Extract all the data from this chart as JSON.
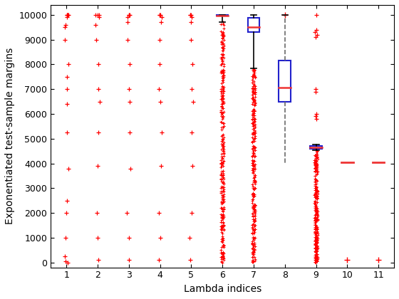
{
  "title": "",
  "xlabel": "Lambda indices",
  "ylabel": "Exponentiated test-sample margins",
  "xlim": [
    0.5,
    11.5
  ],
  "ylim": [
    -200,
    10400
  ],
  "xticks": [
    1,
    2,
    3,
    4,
    5,
    6,
    7,
    8,
    9,
    10,
    11
  ],
  "yticks": [
    0,
    1000,
    2000,
    3000,
    4000,
    5000,
    6000,
    7000,
    8000,
    9000,
    10000
  ],
  "background_color": "#ffffff",
  "marker_color": "#ff0000",
  "box_edge_color": "#2222cc",
  "median_color": "#ee3333",
  "sparse_data": {
    "1": [
      0,
      50,
      250,
      1000,
      2000,
      2500,
      3800,
      5250,
      6400,
      7000,
      7500,
      8000,
      9000,
      9500,
      9600,
      9900,
      10000,
      10000,
      10000,
      10000,
      10000
    ],
    "2": [
      100,
      1000,
      2000,
      3900,
      5250,
      6500,
      7000,
      8000,
      9000,
      9600,
      9900,
      10000,
      10000,
      10000
    ],
    "3": [
      100,
      1000,
      2000,
      3800,
      5250,
      6500,
      7000,
      8000,
      9000,
      9700,
      9900,
      10000,
      10000,
      10000
    ],
    "4": [
      100,
      1000,
      2000,
      3900,
      5250,
      6500,
      7000,
      8000,
      9000,
      9700,
      9900,
      10000,
      10000,
      10000
    ],
    "5": [
      100,
      1000,
      2000,
      3900,
      5250,
      6500,
      7000,
      8000,
      9000,
      9700,
      9900,
      10000,
      10000,
      10000
    ]
  },
  "boxplot_data": {
    "6": {
      "q1": 9960,
      "q3": 10000,
      "median": 9980,
      "whisker_low": 9700,
      "whisker_high": 10000,
      "dashed": false
    },
    "7": {
      "q1": 9300,
      "q3": 9870,
      "median": 9520,
      "whisker_low": 7850,
      "whisker_high": 10000,
      "dashed": false
    },
    "8": {
      "q1": 6500,
      "q3": 8150,
      "median": 7050,
      "whisker_low": 4000,
      "whisker_high": 10000,
      "dashed": true
    },
    "9": {
      "q1": 4580,
      "q3": 4700,
      "median": 4640,
      "whisker_low": 4530,
      "whisker_high": 4760,
      "dashed": false
    },
    "10": {
      "q1": 4050,
      "q3": 4050,
      "median": 4050,
      "whisker_low": 4050,
      "whisker_high": 4050,
      "dashed": false
    },
    "11": {
      "q1": 4050,
      "q3": 4050,
      "median": 4050,
      "whisker_low": 4050,
      "whisker_high": 4050,
      "dashed": false
    }
  },
  "dense_scatter": {
    "6": {
      "ymin": 0,
      "ymax": 9700,
      "n": 300
    },
    "7": {
      "ymin": 0,
      "ymax": 7850,
      "n": 300
    },
    "9": {
      "ymin": 0,
      "ymax": 4530,
      "n": 280
    }
  },
  "extra_scatter": {
    "9": [
      5800,
      5900,
      6000,
      6900,
      7000,
      9100,
      9200,
      9300,
      9400,
      10000
    ]
  },
  "single_points": {
    "8": [
      10000
    ],
    "10": [
      100
    ],
    "11": [
      100
    ]
  },
  "box_width": 0.38,
  "figsize": [
    5.6,
    4.2
  ],
  "dpi": 100
}
